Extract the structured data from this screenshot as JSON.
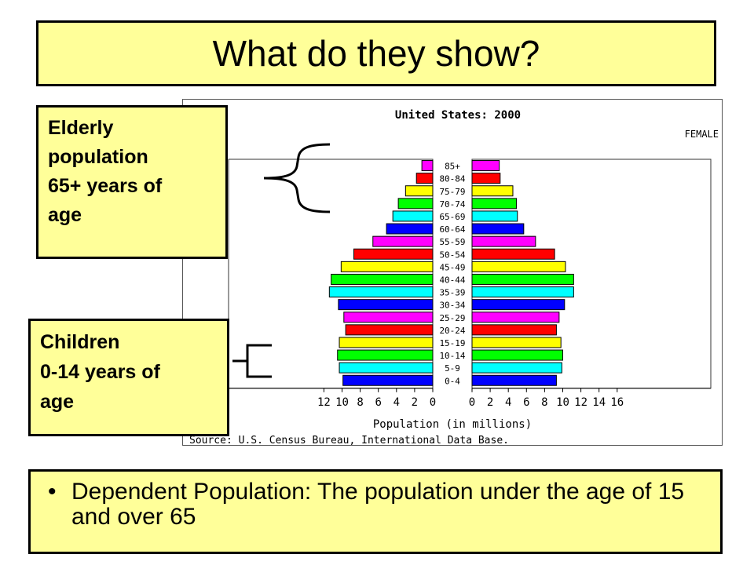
{
  "slide": {
    "title": "What do they show?",
    "callout_elderly": [
      "Elderly",
      "population",
      "65+ years of",
      "age"
    ],
    "callout_children": [
      "Children",
      "0-14 years of",
      "age"
    ],
    "bullet": "Dependent Population: The population under the age of 15 and over 65"
  },
  "chart_data": {
    "type": "bar",
    "orientation": "population-pyramid",
    "title": "United States: 2000",
    "side_label_right": "FEMALE",
    "xlabel": "Population (in millions)",
    "source": "Source: U.S. Census Bureau, International Data Base.",
    "categories": [
      "85+",
      "80-84",
      "75-79",
      "70-74",
      "65-69",
      "60-64",
      "55-59",
      "50-54",
      "45-49",
      "40-44",
      "35-39",
      "30-34",
      "25-29",
      "20-24",
      "15-19",
      "10-14",
      "5-9",
      "0-4"
    ],
    "series": [
      {
        "name": "",
        "side": "left",
        "values": [
          1.2,
          1.8,
          3.0,
          3.8,
          4.4,
          5.1,
          6.6,
          8.7,
          10.1,
          11.2,
          11.4,
          10.4,
          9.8,
          9.6,
          10.3,
          10.5,
          10.3,
          9.9
        ]
      },
      {
        "name": "FEMALE",
        "side": "right",
        "values": [
          3.0,
          3.1,
          4.5,
          4.9,
          5.0,
          5.7,
          7.0,
          9.1,
          10.3,
          11.2,
          11.2,
          10.2,
          9.6,
          9.3,
          9.8,
          10.0,
          9.9,
          9.3
        ]
      }
    ],
    "left_ticks": [
      12,
      10,
      8,
      6,
      4,
      2,
      0
    ],
    "right_ticks": [
      0,
      2,
      4,
      6,
      8,
      10,
      12,
      14,
      16
    ],
    "xlim": [
      0,
      16
    ],
    "bar_colors": [
      "#ff00ff",
      "#ff0000",
      "#ffff00",
      "#00ff00",
      "#00ffff",
      "#0000ff"
    ],
    "grid": false
  }
}
